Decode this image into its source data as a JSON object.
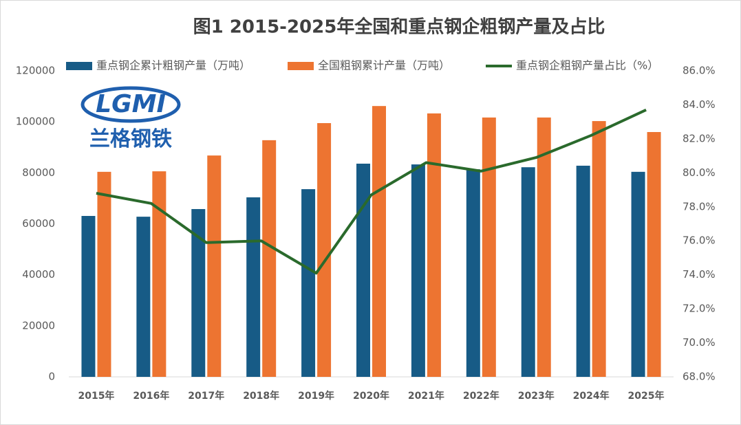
{
  "chart_data": {
    "type": "bar-line",
    "title": "图1 2015-2025年全国和重点钢企粗钢产量及占比",
    "logo": {
      "mark": "LGMI",
      "name": "兰格钢铁"
    },
    "categories": [
      "2015年",
      "2016年",
      "2017年",
      "2018年",
      "2019年",
      "2020年",
      "2021年",
      "2022年",
      "2023年",
      "2024年",
      "2025年"
    ],
    "series": [
      {
        "name": "重点钢企累计粗钢产量（万吨）",
        "type": "bar",
        "color": "#175b86",
        "values": [
          63100,
          62800,
          65800,
          70400,
          73600,
          83600,
          83300,
          81400,
          82200,
          82800,
          80400
        ]
      },
      {
        "name": "全国粗钢累计产量（万吨）",
        "type": "bar",
        "color": "#ed7431",
        "values": [
          80400,
          80600,
          86800,
          92800,
          99500,
          106200,
          103300,
          101700,
          101700,
          100300,
          96000
        ]
      },
      {
        "name": "重点钢企粗钢产量占比（%）",
        "type": "line",
        "axis": "y2",
        "color": "#2a6a2c",
        "values": [
          78.8,
          78.2,
          75.9,
          76.0,
          74.1,
          78.7,
          80.6,
          80.1,
          80.9,
          82.2,
          83.7
        ]
      }
    ],
    "ylim": [
      0,
      120000
    ],
    "yticks": [
      0,
      20000,
      40000,
      60000,
      80000,
      100000,
      120000
    ],
    "y2lim": [
      68,
      86
    ],
    "y2ticks": [
      {
        "value": 68,
        "label": "68.0%"
      },
      {
        "value": 70,
        "label": "70.0%"
      },
      {
        "value": 72,
        "label": "72.0%"
      },
      {
        "value": 74,
        "label": "74.0%"
      },
      {
        "value": 76,
        "label": "76.0%"
      },
      {
        "value": 78,
        "label": "78.0%"
      },
      {
        "value": 80,
        "label": "80.0%"
      },
      {
        "value": 82,
        "label": "82.0%"
      },
      {
        "value": 84,
        "label": "84.0%"
      },
      {
        "value": 86,
        "label": "86.0%"
      }
    ],
    "grid": false,
    "legend": "top"
  }
}
